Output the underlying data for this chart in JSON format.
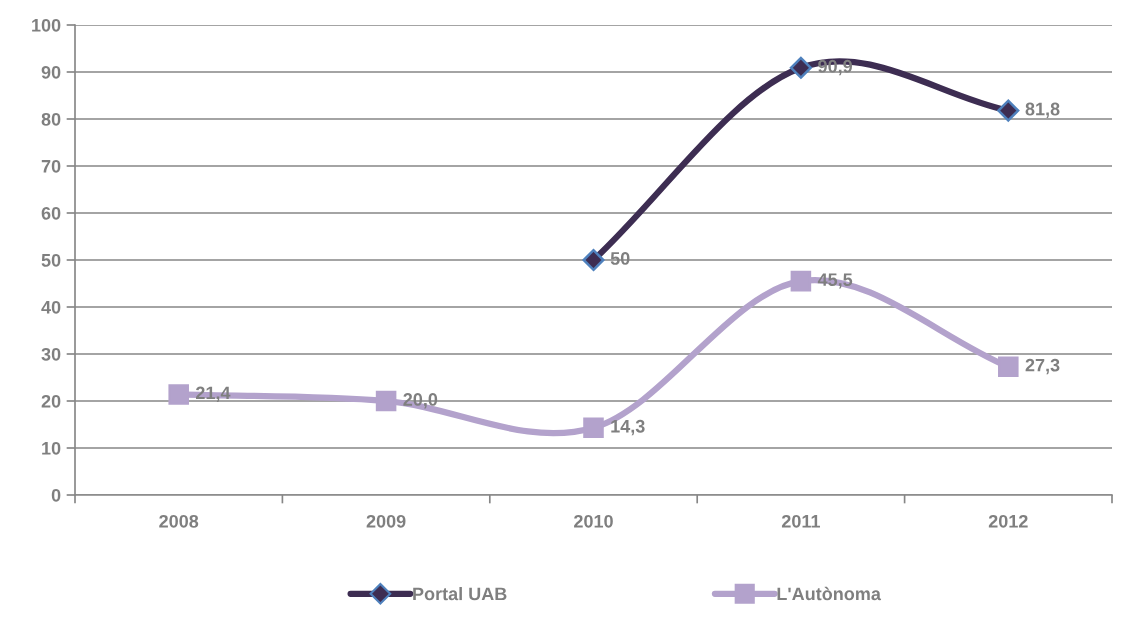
{
  "chart_data": {
    "type": "line",
    "categories": [
      "2008",
      "2009",
      "2010",
      "2011",
      "2012"
    ],
    "series": [
      {
        "name": "Portal UAB",
        "color": "#3d2d52",
        "marker": "diamond",
        "values": [
          null,
          null,
          50,
          90.9,
          81.8
        ],
        "value_labels": [
          null,
          null,
          "50",
          "90,9",
          "81,8"
        ]
      },
      {
        "name": "L'Autònoma",
        "color": "#b3a2cc",
        "marker": "square",
        "values": [
          21.4,
          20.0,
          14.3,
          45.5,
          27.3
        ],
        "value_labels": [
          "21,4",
          "20,0",
          "14,3",
          "45,5",
          "27,3"
        ]
      }
    ],
    "ylim": [
      0,
      100
    ],
    "yticks": [
      0,
      10,
      20,
      30,
      40,
      50,
      60,
      70,
      80,
      90,
      100
    ],
    "grid": "y",
    "legend": "bottom"
  }
}
